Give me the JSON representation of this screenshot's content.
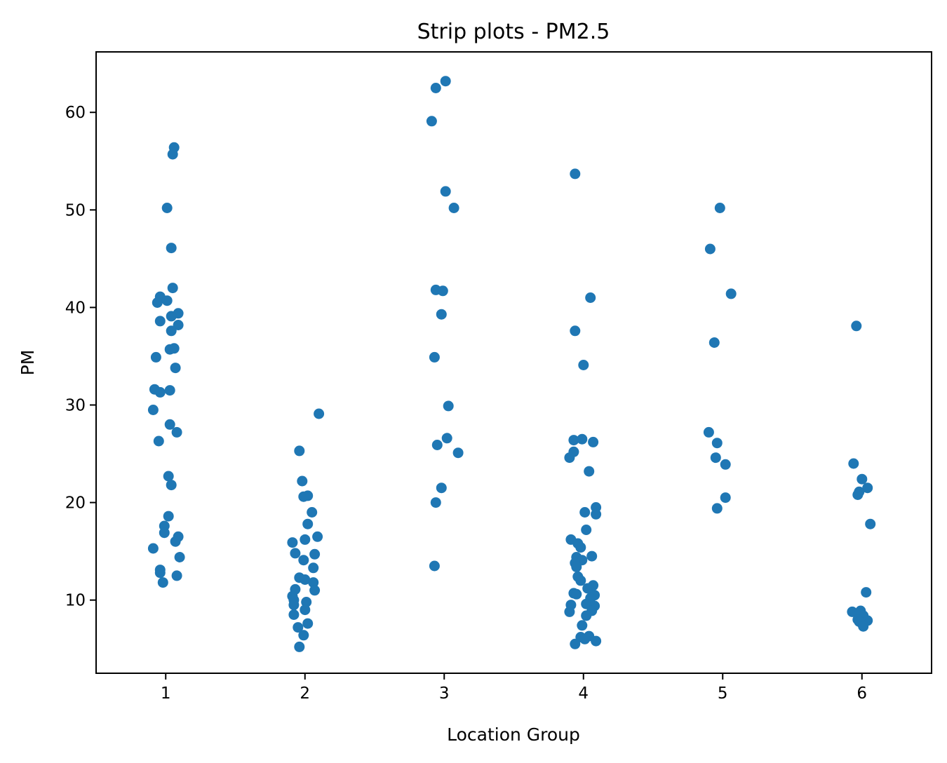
{
  "chart_data": {
    "type": "scatter",
    "subtype": "strip",
    "title": "Strip plots - PM2.5",
    "xlabel": "Location Group",
    "ylabel": "PM",
    "categories": [
      "1",
      "2",
      "3",
      "4",
      "5",
      "6"
    ],
    "xlim": [
      0.5,
      6.5
    ],
    "ylim": [
      2.5,
      66.2
    ],
    "yticks": [
      10,
      20,
      30,
      40,
      50,
      60
    ],
    "grid": false,
    "legend": "none",
    "point_color": "#1f77b4",
    "series": [
      {
        "category": "1",
        "points": [
          [
            1.06,
            56.4
          ],
          [
            1.05,
            55.7
          ],
          [
            1.01,
            50.2
          ],
          [
            1.04,
            46.1
          ],
          [
            1.05,
            42.0
          ],
          [
            0.96,
            41.1
          ],
          [
            0.94,
            40.5
          ],
          [
            1.01,
            40.7
          ],
          [
            1.09,
            39.4
          ],
          [
            1.04,
            39.1
          ],
          [
            0.96,
            38.6
          ],
          [
            1.09,
            38.2
          ],
          [
            1.04,
            37.6
          ],
          [
            1.03,
            35.7
          ],
          [
            1.06,
            35.8
          ],
          [
            0.93,
            34.9
          ],
          [
            1.07,
            33.8
          ],
          [
            0.92,
            31.6
          ],
          [
            0.96,
            31.3
          ],
          [
            1.03,
            31.5
          ],
          [
            0.91,
            29.5
          ],
          [
            1.03,
            28.0
          ],
          [
            1.08,
            27.2
          ],
          [
            0.95,
            26.3
          ],
          [
            1.02,
            22.7
          ],
          [
            1.04,
            21.8
          ],
          [
            1.02,
            18.6
          ],
          [
            0.99,
            17.6
          ],
          [
            0.99,
            16.9
          ],
          [
            1.09,
            16.5
          ],
          [
            1.07,
            16.0
          ],
          [
            0.91,
            15.3
          ],
          [
            1.1,
            14.4
          ],
          [
            0.96,
            13.1
          ],
          [
            0.96,
            12.8
          ],
          [
            1.08,
            12.5
          ],
          [
            0.98,
            11.8
          ]
        ]
      },
      {
        "category": "2",
        "points": [
          [
            2.1,
            29.1
          ],
          [
            1.96,
            25.3
          ],
          [
            1.98,
            22.2
          ],
          [
            2.02,
            20.7
          ],
          [
            1.99,
            20.6
          ],
          [
            2.05,
            19.0
          ],
          [
            2.02,
            17.8
          ],
          [
            2.09,
            16.5
          ],
          [
            2.0,
            16.2
          ],
          [
            1.91,
            15.9
          ],
          [
            1.93,
            14.8
          ],
          [
            2.07,
            14.7
          ],
          [
            1.99,
            14.1
          ],
          [
            2.06,
            13.3
          ],
          [
            1.96,
            12.3
          ],
          [
            2.0,
            12.1
          ],
          [
            2.06,
            11.8
          ],
          [
            1.93,
            11.1
          ],
          [
            2.07,
            11.0
          ],
          [
            1.91,
            10.4
          ],
          [
            1.92,
            10.0
          ],
          [
            2.01,
            9.8
          ],
          [
            1.92,
            9.5
          ],
          [
            2.0,
            9.0
          ],
          [
            1.92,
            8.5
          ],
          [
            2.02,
            7.6
          ],
          [
            1.95,
            7.2
          ],
          [
            1.99,
            6.4
          ],
          [
            1.96,
            5.2
          ]
        ]
      },
      {
        "category": "3",
        "points": [
          [
            3.01,
            63.2
          ],
          [
            2.94,
            62.5
          ],
          [
            2.91,
            59.1
          ],
          [
            3.01,
            51.9
          ],
          [
            3.07,
            50.2
          ],
          [
            2.94,
            41.8
          ],
          [
            2.99,
            41.7
          ],
          [
            2.98,
            39.3
          ],
          [
            2.93,
            34.9
          ],
          [
            3.03,
            29.9
          ],
          [
            3.02,
            26.6
          ],
          [
            2.95,
            25.9
          ],
          [
            3.1,
            25.1
          ],
          [
            2.98,
            21.5
          ],
          [
            2.94,
            20.0
          ],
          [
            2.93,
            13.5
          ]
        ]
      },
      {
        "category": "4",
        "points": [
          [
            3.94,
            53.7
          ],
          [
            4.05,
            41.0
          ],
          [
            3.94,
            37.6
          ],
          [
            4.0,
            34.1
          ],
          [
            3.93,
            26.4
          ],
          [
            3.99,
            26.5
          ],
          [
            4.07,
            26.2
          ],
          [
            3.93,
            25.2
          ],
          [
            3.9,
            24.6
          ],
          [
            4.04,
            23.2
          ],
          [
            4.09,
            19.5
          ],
          [
            4.01,
            19.0
          ],
          [
            4.09,
            18.8
          ],
          [
            4.02,
            17.2
          ],
          [
            3.91,
            16.2
          ],
          [
            3.96,
            15.8
          ],
          [
            3.98,
            15.4
          ],
          [
            3.95,
            14.4
          ],
          [
            4.06,
            14.5
          ],
          [
            3.99,
            14.1
          ],
          [
            3.94,
            13.8
          ],
          [
            3.95,
            13.4
          ],
          [
            3.96,
            12.4
          ],
          [
            3.98,
            12.0
          ],
          [
            4.07,
            11.5
          ],
          [
            4.03,
            11.2
          ],
          [
            3.93,
            10.7
          ],
          [
            3.95,
            10.6
          ],
          [
            4.08,
            10.5
          ],
          [
            4.05,
            10.2
          ],
          [
            3.91,
            9.5
          ],
          [
            4.02,
            9.6
          ],
          [
            4.08,
            9.4
          ],
          [
            4.06,
            8.9
          ],
          [
            3.9,
            8.8
          ],
          [
            4.02,
            8.4
          ],
          [
            3.99,
            7.4
          ],
          [
            3.98,
            6.2
          ],
          [
            4.04,
            6.3
          ],
          [
            4.01,
            6.0
          ],
          [
            3.94,
            5.5
          ],
          [
            4.09,
            5.8
          ]
        ]
      },
      {
        "category": "5",
        "points": [
          [
            4.98,
            50.2
          ],
          [
            4.91,
            46.0
          ],
          [
            5.06,
            41.4
          ],
          [
            4.94,
            36.4
          ],
          [
            4.9,
            27.2
          ],
          [
            4.96,
            26.1
          ],
          [
            4.95,
            24.6
          ],
          [
            5.02,
            23.9
          ],
          [
            5.02,
            20.5
          ],
          [
            4.96,
            19.4
          ]
        ]
      },
      {
        "category": "6",
        "points": [
          [
            5.96,
            38.1
          ],
          [
            5.94,
            24.0
          ],
          [
            6.0,
            22.4
          ],
          [
            6.04,
            21.5
          ],
          [
            5.98,
            21.1
          ],
          [
            5.97,
            20.8
          ],
          [
            6.06,
            17.8
          ],
          [
            6.03,
            10.8
          ],
          [
            5.99,
            8.9
          ],
          [
            5.93,
            8.8
          ],
          [
            5.98,
            8.6
          ],
          [
            6.01,
            8.4
          ],
          [
            5.97,
            8.0
          ],
          [
            6.04,
            7.9
          ],
          [
            6.0,
            7.6
          ],
          [
            5.98,
            7.8
          ],
          [
            6.01,
            7.3
          ]
        ]
      }
    ]
  }
}
